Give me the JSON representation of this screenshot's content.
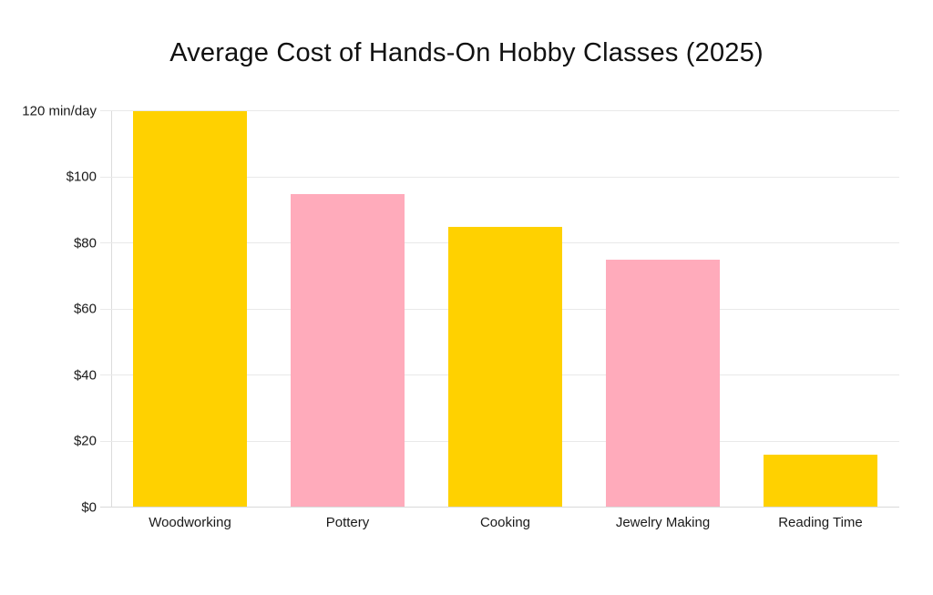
{
  "title": "Average Cost of Hands-On Hobby Classes (2025)",
  "colors": {
    "bar_yellow": "#FFD100",
    "bar_pink": "#FFABBB",
    "gridline": "#E9E9E9",
    "axis": "#DCDCDC",
    "text": "#1A1A1A"
  },
  "chart_data": {
    "type": "bar",
    "title": "Average Cost of Hands-On Hobby Classes (2025)",
    "categories": [
      "Woodworking",
      "Pottery",
      "Cooking",
      "Jewelry Making",
      "Reading Time"
    ],
    "values": [
      120,
      95,
      85,
      75,
      16
    ],
    "bar_colors": [
      "#FFD100",
      "#FFABBB",
      "#FFD100",
      "#FFABBB",
      "#FFD100"
    ],
    "xlabel": "",
    "ylabel": "",
    "ylim": [
      0,
      120
    ],
    "yticks": [
      {
        "value": 0,
        "label": "$0"
      },
      {
        "value": 20,
        "label": "$20"
      },
      {
        "value": 40,
        "label": "$40"
      },
      {
        "value": 60,
        "label": "$60"
      },
      {
        "value": 80,
        "label": "$80"
      },
      {
        "value": 100,
        "label": "$100"
      },
      {
        "value": 120,
        "label": "120 min/day"
      }
    ],
    "grid": true,
    "legend_position": "none",
    "background": "#FFFFFF"
  }
}
